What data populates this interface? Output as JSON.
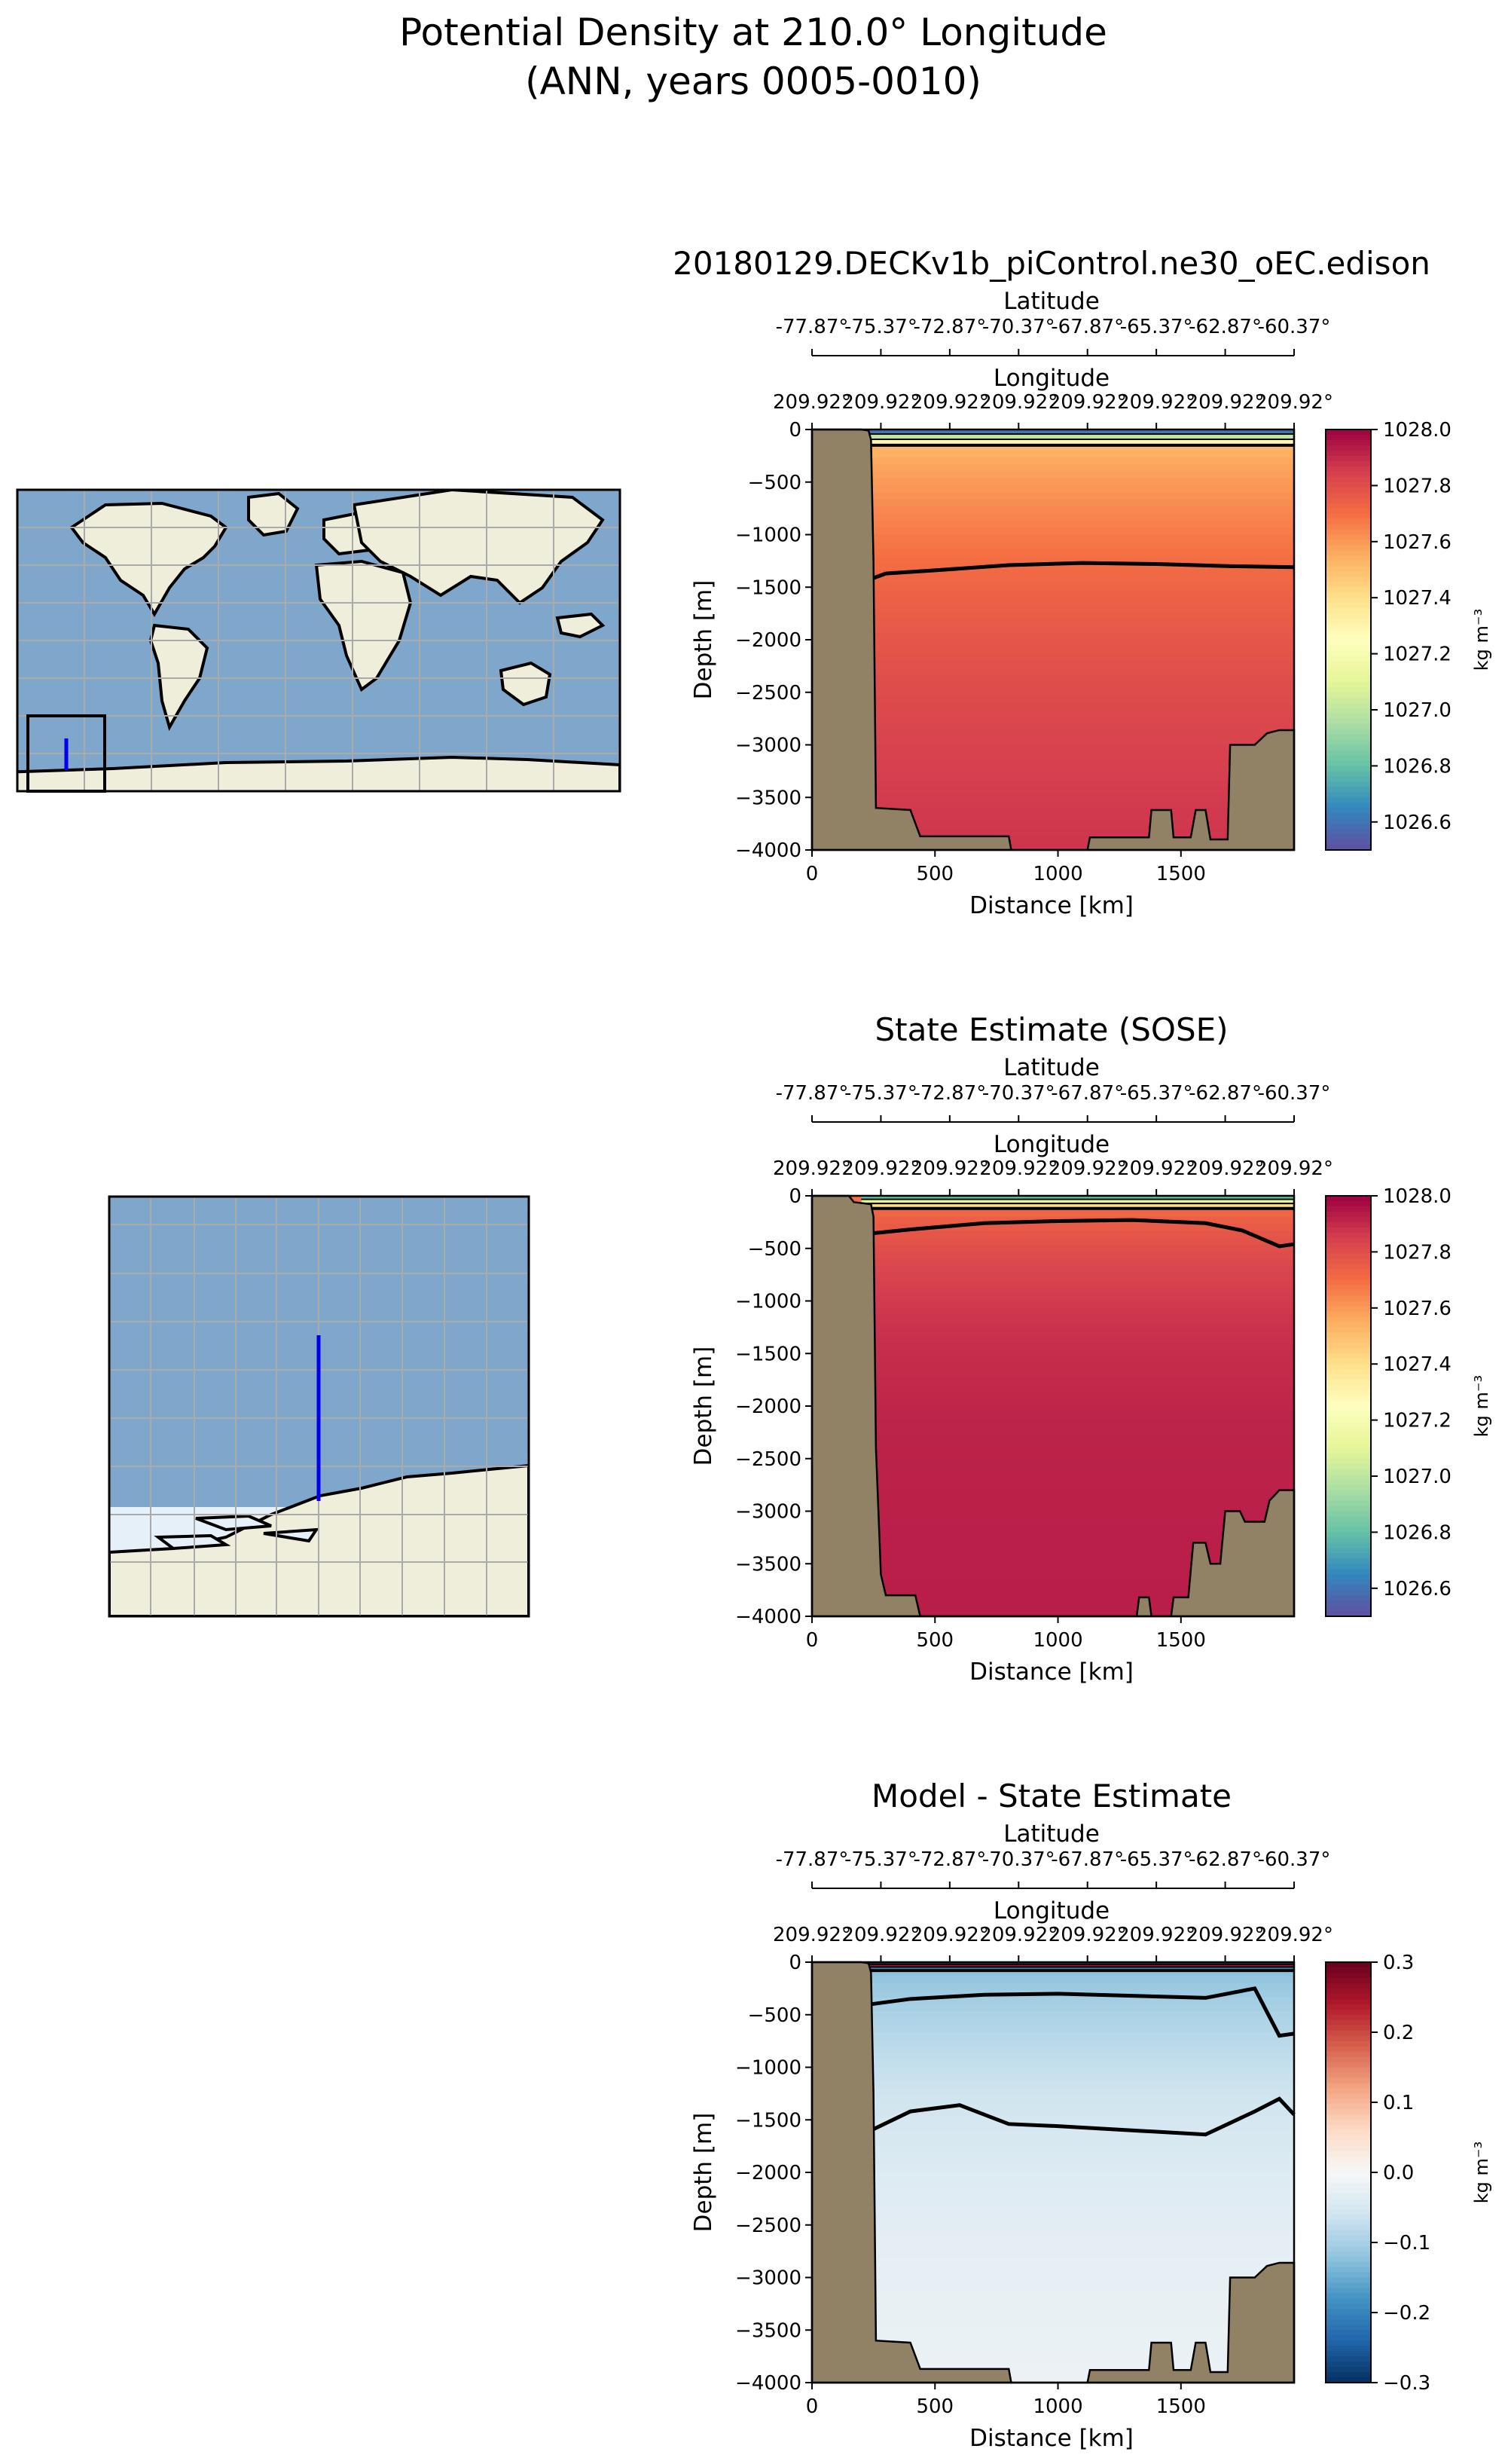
{
  "figure": {
    "title_line1": "Potential Density at 210.0° Longitude",
    "title_line2": "(ANN, years 0005-0010)"
  },
  "colors": {
    "land": "#918265",
    "map_ocean": "#7ea7cb",
    "map_land": "#efeedb",
    "map_ice": "#e6f0f8",
    "track": "#0000ee",
    "spectral": [
      "#5e4fa2",
      "#3288bd",
      "#66c2a5",
      "#abdda4",
      "#e6f598",
      "#ffffbf",
      "#fee08b",
      "#fdae61",
      "#f46d43",
      "#d53e4f",
      "#9e0142"
    ],
    "rdbu": [
      "#053061",
      "#2166ac",
      "#4393c3",
      "#92c5de",
      "#d1e5f0",
      "#f7f7f7",
      "#fddbc7",
      "#f4a582",
      "#d6604d",
      "#b2182b",
      "#67001f"
    ]
  },
  "chart_data": [
    {
      "type": "heatmap",
      "title": "20180129.DECKv1b_piControl.ne30_oEC.edison",
      "xlabel": "Distance [km]",
      "ylabel": "Depth [m]",
      "xlim": [
        0,
        1960
      ],
      "ylim": [
        -4000,
        0
      ],
      "xticks": [
        0,
        500,
        1000,
        1500
      ],
      "yticks": [
        0,
        -500,
        -1000,
        -1500,
        -2000,
        -2500,
        -3000,
        -3500,
        -4000
      ],
      "top_axis_latitude": {
        "label": "Latitude",
        "ticks": [
          "-77.87°",
          "-75.37°",
          "-72.87°",
          "-70.37°",
          "-67.87°",
          "-65.37°",
          "-62.87°",
          "-60.37°"
        ]
      },
      "top_axis_longitude": {
        "label": "Longitude",
        "ticks": [
          "209.92°",
          "209.92°",
          "209.92°",
          "209.92°",
          "209.92°",
          "209.92°",
          "209.92°",
          "209.92°"
        ]
      },
      "colorbar": {
        "label": "kg m$^{-3}$",
        "label_text": "kg m⁻³",
        "vmin": 1026.5,
        "vmax": 1028.0,
        "cmap": "spectral",
        "ticks": [
          "1028.0",
          "1027.8",
          "1027.6",
          "1027.4",
          "1027.2",
          "1027.0",
          "1026.8",
          "1026.6"
        ],
        "tick_values": [
          1028.0,
          1027.8,
          1027.6,
          1027.4,
          1027.2,
          1027.0,
          1026.8,
          1026.6
        ]
      },
      "field": {
        "surface_value": 1027.5,
        "bottom_value": 1027.93,
        "scale_depth": 2000
      },
      "surface_layer": {
        "values": [
          1026.6,
          1027.0,
          1027.3
        ],
        "depth": 150
      },
      "contour_depths": [
        {
          "x": [
            230,
            300,
            500,
            800,
            1100,
            1400,
            1700,
            1960
          ],
          "depth": [
            -1430,
            -1370,
            -1340,
            -1290,
            -1270,
            -1280,
            -1300,
            -1310
          ]
        }
      ],
      "land_profile": {
        "x": [
          0,
          200,
          230,
          240,
          250,
          260,
          400,
          440,
          800,
          810,
          1120,
          1130,
          1300,
          1370,
          1380,
          1460,
          1470,
          1540,
          1560,
          1600,
          1620,
          1690,
          1700,
          1800,
          1850,
          1900,
          1960
        ],
        "depth": [
          0,
          0,
          -10,
          -100,
          -1250,
          -3600,
          -3620,
          -3870,
          -3870,
          -4000,
          -4000,
          -3880,
          -3880,
          -3880,
          -3620,
          -3620,
          -3880,
          -3880,
          -3620,
          -3620,
          -3900,
          -3900,
          -3000,
          -3000,
          -2890,
          -2860,
          -2860
        ]
      }
    },
    {
      "type": "heatmap",
      "title": "State Estimate (SOSE)",
      "xlabel": "Distance [km]",
      "ylabel": "Depth [m]",
      "xlim": [
        0,
        1960
      ],
      "ylim": [
        -4000,
        0
      ],
      "xticks": [
        0,
        500,
        1000,
        1500
      ],
      "yticks": [
        0,
        -500,
        -1000,
        -1500,
        -2000,
        -2500,
        -3000,
        -3500,
        -4000
      ],
      "top_axis_latitude": {
        "label": "Latitude",
        "ticks": [
          "-77.87°",
          "-75.37°",
          "-72.87°",
          "-70.37°",
          "-67.87°",
          "-65.37°",
          "-62.87°",
          "-60.37°"
        ]
      },
      "top_axis_longitude": {
        "label": "Longitude",
        "ticks": [
          "209.92°",
          "209.92°",
          "209.92°",
          "209.92°",
          "209.92°",
          "209.92°",
          "209.92°",
          "209.92°"
        ]
      },
      "colorbar": {
        "label": "kg m$^{-3}$",
        "label_text": "kg m⁻³",
        "vmin": 1026.5,
        "vmax": 1028.0,
        "cmap": "spectral",
        "ticks": [
          "1028.0",
          "1027.8",
          "1027.6",
          "1027.4",
          "1027.2",
          "1027.0",
          "1026.8",
          "1026.6"
        ],
        "tick_values": [
          1028.0,
          1027.8,
          1027.6,
          1027.4,
          1027.2,
          1027.0,
          1026.8,
          1026.6
        ]
      },
      "field": {
        "surface_value": 1027.68,
        "bottom_value": 1027.93,
        "scale_depth": 800
      },
      "surface_layer": {
        "values": [
          1026.8,
          1027.1,
          1027.4
        ],
        "depth": 120
      },
      "contour_depths": [
        {
          "x": [
            230,
            400,
            700,
            1000,
            1300,
            1600,
            1750,
            1900,
            1960
          ],
          "depth": [
            -360,
            -320,
            -260,
            -240,
            -230,
            -260,
            -330,
            -480,
            -460
          ]
        }
      ],
      "land_profile": {
        "x": [
          0,
          150,
          170,
          240,
          250,
          260,
          280,
          300,
          420,
          440,
          1320,
          1330,
          1370,
          1380,
          1460,
          1470,
          1530,
          1550,
          1600,
          1620,
          1660,
          1680,
          1740,
          1760,
          1840,
          1860,
          1900,
          1960
        ],
        "depth": [
          0,
          0,
          -60,
          -80,
          -200,
          -2400,
          -3600,
          -3800,
          -3800,
          -4000,
          -4000,
          -3820,
          -3820,
          -4000,
          -4000,
          -3820,
          -3820,
          -3300,
          -3300,
          -3500,
          -3500,
          -3000,
          -3000,
          -3100,
          -3100,
          -2900,
          -2800,
          -2800
        ]
      }
    },
    {
      "type": "heatmap",
      "title": "Model - State Estimate",
      "xlabel": "Distance [km]",
      "ylabel": "Depth [m]",
      "xlim": [
        0,
        1960
      ],
      "ylim": [
        -4000,
        0
      ],
      "xticks": [
        0,
        500,
        1000,
        1500
      ],
      "yticks": [
        0,
        -500,
        -1000,
        -1500,
        -2000,
        -2500,
        -3000,
        -3500,
        -4000
      ],
      "top_axis_latitude": {
        "label": "Latitude",
        "ticks": [
          "-77.87°",
          "-75.37°",
          "-72.87°",
          "-70.37°",
          "-67.87°",
          "-65.37°",
          "-62.87°",
          "-60.37°"
        ]
      },
      "top_axis_longitude": {
        "label": "Longitude",
        "ticks": [
          "209.92°",
          "209.92°",
          "209.92°",
          "209.92°",
          "209.92°",
          "209.92°",
          "209.92°",
          "209.92°"
        ]
      },
      "colorbar": {
        "label": "kg m$^{-3}$",
        "label_text": "kg m⁻³",
        "vmin": -0.3,
        "vmax": 0.3,
        "cmap": "rdbu",
        "ticks": [
          "0.3",
          "0.2",
          "0.1",
          "0.0",
          "−0.1",
          "−0.2",
          "−0.3"
        ],
        "tick_values": [
          0.3,
          0.2,
          0.1,
          0.0,
          -0.1,
          -0.2,
          -0.3
        ]
      },
      "field": {
        "surface_value": -0.13,
        "bottom_value": -0.01,
        "scale_depth": 1500
      },
      "surface_layer": {
        "values": [
          -0.25,
          0.25,
          -0.2
        ],
        "depth": 80
      },
      "contour_depths": [
        {
          "x": [
            240,
            400,
            700,
            1000,
            1300,
            1600,
            1800,
            1900,
            1960
          ],
          "depth": [
            -400,
            -350,
            -310,
            -300,
            -320,
            -340,
            -250,
            -700,
            -680
          ]
        },
        {
          "x": [
            240,
            400,
            600,
            800,
            1000,
            1300,
            1600,
            1800,
            1900,
            1960
          ],
          "depth": [
            -1600,
            -1420,
            -1360,
            -1540,
            -1560,
            -1600,
            -1640,
            -1420,
            -1300,
            -1450
          ]
        }
      ],
      "land_profile": {
        "x": [
          0,
          200,
          230,
          240,
          250,
          260,
          400,
          440,
          800,
          810,
          1120,
          1130,
          1300,
          1370,
          1380,
          1460,
          1470,
          1540,
          1560,
          1600,
          1620,
          1690,
          1700,
          1800,
          1850,
          1900,
          1960
        ],
        "depth": [
          0,
          0,
          -10,
          -100,
          -1250,
          -3600,
          -3620,
          -3870,
          -3870,
          -4000,
          -4000,
          -3880,
          -3880,
          -3880,
          -3620,
          -3620,
          -3880,
          -3880,
          -3620,
          -3620,
          -3900,
          -3900,
          -3000,
          -3000,
          -2890,
          -2860,
          -2860
        ]
      }
    }
  ]
}
